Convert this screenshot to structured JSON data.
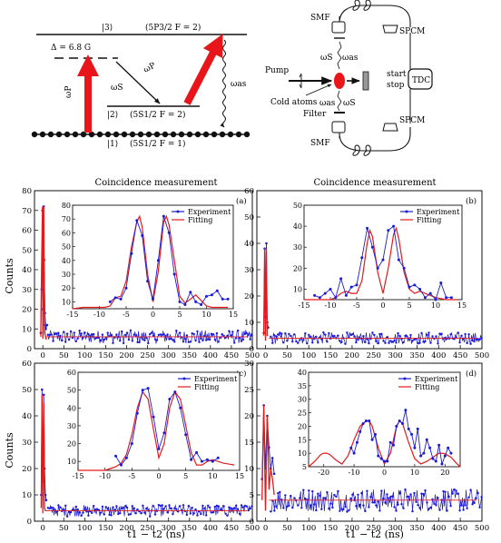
{
  "energy_diagram": {
    "level3": "|3⟩",
    "level3_term": "(5P3/2 F = 2)",
    "detuning": "Δ = 6.8 G",
    "omega_p": "ωP",
    "omega_s": "ωS",
    "omega_as": "ωas",
    "level2": "|2⟩",
    "level2_term": "(5S1/2 F = 2)",
    "level1": "|1⟩",
    "level1_term": "(5S1/2 F = 1)",
    "colors": {
      "pump_arrow": "#e8151b"
    }
  },
  "setup": {
    "smf_top": "SMF",
    "smf_bottom": "SMF",
    "spcm_top": "SPCM",
    "spcm_bottom": "SPCM",
    "pump": "Pump",
    "cold_atoms": "Cold atoms",
    "filter": "Filter",
    "start": "start",
    "stop": "stop",
    "tdc": "TDC",
    "ws_top": "ωS",
    "was_top": "ωas",
    "was_bottom": "ωas",
    "ws_bottom": "ωS"
  },
  "figure_text": {
    "title_left": "Coincidence measurement",
    "title_right": "Coincidence measurement",
    "xlabel_left": "t1 − t2  (ns)",
    "xlabel_right": "t1 − t2  (ns)",
    "ylabel_top": "Counts",
    "ylabel_bottom": "Counts"
  },
  "chart_data": [
    {
      "type": "line",
      "panel": "(a)",
      "xlim": [
        -20,
        500
      ],
      "ylim": [
        0,
        80
      ],
      "xticks": [
        0,
        50,
        100,
        150,
        200,
        250,
        300,
        350,
        400,
        450,
        500
      ],
      "yticks": [
        0,
        10,
        20,
        30,
        40,
        50,
        60,
        70,
        80
      ],
      "background": 6,
      "series": [
        {
          "name": "Experiment",
          "color": "#1a1ad6",
          "x": [
            -5,
            -3,
            -1,
            0,
            1,
            2,
            3,
            5,
            7,
            10
          ],
          "y": [
            8,
            30,
            70,
            20,
            12,
            72,
            45,
            18,
            10,
            12
          ]
        },
        {
          "name": "Fitting",
          "color": "#e31a1c",
          "x": [
            -5,
            -3,
            -1,
            0,
            1,
            2,
            3,
            5,
            7,
            10
          ],
          "y": [
            6,
            40,
            72,
            5,
            8,
            72,
            40,
            8,
            5,
            5
          ]
        }
      ],
      "inset": {
        "xlim": [
          -15,
          15
        ],
        "ylim": [
          5,
          80
        ],
        "xticks": [
          -15,
          -10,
          -5,
          0,
          5,
          10,
          15
        ],
        "yticks": [
          10,
          20,
          30,
          40,
          50,
          60,
          70,
          80
        ],
        "series": [
          {
            "name": "Experiment",
            "color": "#1a1ad6",
            "x": [
              -8,
              -7,
              -6,
              -5,
              -4,
              -3,
              -2,
              -1,
              0,
              1,
              2,
              3,
              4,
              5,
              6,
              7,
              8,
              9,
              10,
              11,
              12,
              13,
              14
            ],
            "y": [
              10,
              13,
              12,
              20,
              45,
              69,
              58,
              25,
              12,
              40,
              72,
              60,
              30,
              10,
              8,
              17,
              10,
              8,
              14,
              15,
              18,
              12,
              12
            ]
          },
          {
            "name": "Fitting",
            "color": "#e31a1c",
            "x": [
              -15,
              -13,
              -11,
              -10,
              -9,
              -8,
              -7,
              -6,
              -5,
              -4,
              -3,
              -2.5,
              -2,
              -1,
              0,
              1,
              2,
              2.5,
              3,
              4,
              5,
              6,
              7,
              8,
              9,
              10,
              11,
              12,
              13,
              14
            ],
            "y": [
              5,
              6,
              6,
              6,
              6,
              7,
              13,
              14,
              25,
              50,
              68,
              72,
              64,
              30,
              10,
              32,
              68,
              72,
              66,
              40,
              14,
              9,
              12,
              15,
              11,
              7,
              6,
              6,
              6,
              6
            ]
          }
        ]
      }
    },
    {
      "type": "line",
      "panel": "(b)",
      "xlim": [
        -20,
        500
      ],
      "ylim": [
        0,
        60
      ],
      "xticks": [
        0,
        50,
        100,
        150,
        200,
        250,
        300,
        350,
        400,
        450,
        500
      ],
      "yticks": [
        0,
        10,
        20,
        30,
        40,
        50,
        60
      ],
      "background": 4,
      "series": [
        {
          "name": "Experiment",
          "color": "#1a1ad6",
          "x": [
            -4,
            -2,
            0,
            2,
            4,
            6
          ],
          "y": [
            6,
            38,
            12,
            40,
            10,
            8
          ]
        },
        {
          "name": "Fitting",
          "color": "#e31a1c",
          "x": [
            -4,
            -2,
            0,
            2,
            4,
            6
          ],
          "y": [
            5,
            38,
            3,
            38,
            5,
            5
          ]
        }
      ],
      "inset": {
        "xlim": [
          -15,
          15
        ],
        "ylim": [
          5,
          50
        ],
        "xticks": [
          -15,
          -10,
          -5,
          0,
          5,
          10,
          15
        ],
        "yticks": [
          10,
          20,
          30,
          40,
          50
        ],
        "series": [
          {
            "name": "Experiment",
            "color": "#1a1ad6",
            "x": [
              -13,
              -12,
              -11,
              -10,
              -9,
              -8,
              -7,
              -6,
              -5,
              -4,
              -3,
              -2,
              -1,
              0,
              1,
              2,
              3,
              4,
              5,
              6,
              7,
              8,
              9,
              10,
              11,
              12,
              13
            ],
            "y": [
              7,
              6,
              8,
              10,
              6,
              15,
              7,
              11,
              12,
              25,
              39,
              30,
              20,
              24,
              38,
              40,
              24,
              20,
              11,
              12,
              10,
              6,
              8,
              5,
              13,
              6,
              6
            ]
          },
          {
            "name": "Fitting",
            "color": "#e31a1c",
            "x": [
              -15,
              -12,
              -10,
              -9,
              -8,
              -7,
              -6,
              -5,
              -4,
              -3,
              -2.5,
              -2,
              -1,
              0,
              1,
              2,
              2.5,
              3,
              4,
              5,
              6,
              7,
              8,
              9,
              10,
              12,
              14
            ],
            "y": [
              5,
              5,
              5,
              6,
              8,
              9,
              8,
              8,
              14,
              32,
              38,
              35,
              18,
              8,
              20,
              36,
              39,
              34,
              18,
              10,
              8,
              9,
              8,
              7,
              6,
              5,
              5
            ]
          }
        ]
      }
    },
    {
      "type": "line",
      "panel": "(c)",
      "xlim": [
        -20,
        500
      ],
      "ylim": [
        0,
        60
      ],
      "xticks": [
        0,
        50,
        100,
        150,
        200,
        250,
        300,
        350,
        400,
        450,
        500
      ],
      "yticks": [
        0,
        10,
        20,
        30,
        40,
        50,
        60
      ],
      "background": 4,
      "series": [
        {
          "name": "Experiment",
          "color": "#1a1ad6",
          "x": [
            -4,
            -2,
            0,
            2,
            4,
            6,
            8
          ],
          "y": [
            10,
            50,
            15,
            48,
            20,
            10,
            8
          ]
        },
        {
          "name": "Fitting",
          "color": "#e31a1c",
          "x": [
            -4,
            -2,
            0,
            2,
            4,
            6,
            8
          ],
          "y": [
            5,
            48,
            3,
            45,
            5,
            4,
            4
          ]
        }
      ],
      "inset": {
        "xlim": [
          -15,
          15
        ],
        "ylim": [
          5,
          60
        ],
        "xticks": [
          -15,
          -10,
          -5,
          0,
          5,
          10,
          15
        ],
        "yticks": [
          10,
          20,
          30,
          40,
          50,
          60
        ],
        "series": [
          {
            "name": "Experiment",
            "color": "#1a1ad6",
            "x": [
              -8,
              -7,
              -6,
              -5,
              -4,
              -3,
              -2,
              -1,
              0,
              1,
              2,
              3,
              4,
              5,
              6,
              7,
              8,
              9,
              10,
              11
            ],
            "y": [
              13,
              8,
              12,
              20,
              37,
              50,
              51,
              35,
              17,
              26,
              45,
              49,
              40,
              25,
              11,
              15,
              10,
              11,
              10,
              12
            ]
          },
          {
            "name": "Fitting",
            "color": "#e31a1c",
            "x": [
              -15,
              -12,
              -10,
              -9,
              -8,
              -7,
              -6,
              -5,
              -4,
              -3,
              -2,
              -1,
              0,
              1,
              2,
              3,
              4,
              5,
              6,
              7,
              8,
              9,
              10,
              11,
              12,
              14
            ],
            "y": [
              5,
              5,
              5,
              6,
              7,
              9,
              14,
              25,
              40,
              49,
              45,
              28,
              12,
              20,
              40,
              49,
              45,
              30,
              15,
              8,
              8,
              10,
              11,
              10,
              9,
              8
            ]
          }
        ]
      }
    },
    {
      "type": "line",
      "panel": "(d)",
      "xlim": [
        -20,
        500
      ],
      "ylim": [
        0,
        30
      ],
      "xticks": [
        0,
        50,
        100,
        150,
        200,
        250,
        300,
        350,
        400,
        450,
        500
      ],
      "yticks": [
        0,
        5,
        10,
        15,
        20,
        25,
        30
      ],
      "background": 4,
      "series": [
        {
          "name": "Experiment",
          "color": "#1a1ad6",
          "x": [
            -8,
            -4,
            0,
            4,
            8,
            12,
            16,
            20
          ],
          "y": [
            8,
            22,
            10,
            20,
            14,
            10,
            12,
            9
          ]
        },
        {
          "name": "Fitting",
          "color": "#e31a1c",
          "x": [
            -8,
            -4,
            0,
            4,
            8,
            12,
            16,
            20
          ],
          "y": [
            4,
            22,
            2,
            20,
            6,
            10,
            8,
            5
          ]
        }
      ],
      "inset": {
        "xlim": [
          -25,
          25
        ],
        "ylim": [
          5,
          40
        ],
        "xticks": [
          -20,
          -10,
          0,
          10,
          20
        ],
        "yticks": [
          5,
          10,
          15,
          20,
          25,
          30,
          35,
          40
        ],
        "series": [
          {
            "name": "Experiment",
            "color": "#1a1ad6",
            "x": [
              -11,
              -10,
              -9,
              -8,
              -7,
              -6,
              -5,
              -4,
              -3,
              -2,
              -1,
              0,
              1,
              2,
              3,
              4,
              5,
              6,
              7,
              8,
              9,
              10,
              11,
              12,
              13,
              14,
              15,
              16,
              17,
              18,
              19,
              20,
              21,
              22
            ],
            "y": [
              12,
              10,
              14,
              18,
              21,
              22,
              22,
              15,
              17,
              9,
              8,
              7,
              7,
              14,
              13,
              20,
              22,
              21,
              26,
              19,
              17,
              12,
              19,
              9,
              10,
              15,
              12,
              8,
              7,
              13,
              6,
              9,
              12,
              10
            ]
          },
          {
            "name": "Fitting",
            "color": "#e31a1c",
            "x": [
              -25,
              -23,
              -21,
              -20,
              -19,
              -18,
              -16,
              -14,
              -12,
              -10,
              -8,
              -6,
              -5,
              -4,
              -2,
              0,
              2,
              4,
              5,
              6,
              8,
              10,
              12,
              14,
              16,
              18,
              19,
              20,
              22,
              24,
              25
            ],
            "y": [
              5,
              7,
              9.5,
              10,
              10,
              9.5,
              7.5,
              6,
              9,
              15,
              20,
              22,
              22,
              20,
              12,
              6,
              10,
              20,
              22,
              21,
              14,
              8,
              6,
              7,
              8.5,
              10,
              10,
              9.8,
              8.5,
              6,
              5
            ]
          }
        ]
      }
    }
  ]
}
